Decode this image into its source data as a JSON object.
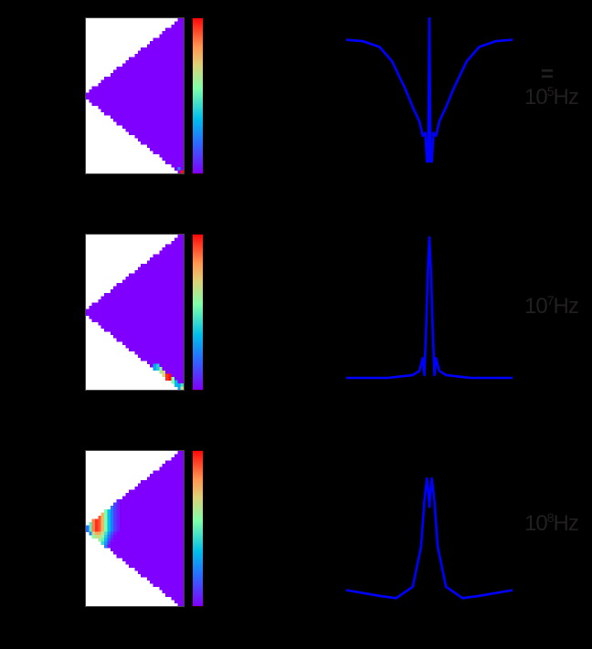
{
  "chart_data": [
    {
      "type": "heatmap",
      "title": "",
      "panel": 1,
      "frequency_label": {
        "base": "10",
        "exponent": "5",
        "unit": "Hz",
        "prefix": "="
      },
      "colormap": "rainbow",
      "colorbar_ticks": [],
      "description": "Triangular (wedge) region, apex at left-middle, fully uniform minimum value (violet) except a hot cell at bottom-right corner",
      "hotspots": [
        {
          "col": 31,
          "row": 47,
          "value": 1.0
        },
        {
          "col": 30,
          "row": 46,
          "value": 0.25
        }
      ]
    },
    {
      "type": "line",
      "panel": 1,
      "title": "",
      "xlabel": "",
      "ylabel": "",
      "color": "#0000ff",
      "shape": "broad dip with narrow central spike and side notches",
      "x": [
        -1.0,
        -0.8,
        -0.6,
        -0.45,
        -0.3,
        -0.2,
        -0.12,
        -0.08,
        -0.05,
        -0.03,
        -0.015,
        0.0,
        0.015,
        0.03,
        0.05,
        0.08,
        0.12,
        0.2,
        0.3,
        0.45,
        0.6,
        0.8,
        1.0
      ],
      "y": [
        0.85,
        0.84,
        0.8,
        0.7,
        0.52,
        0.38,
        0.28,
        0.18,
        0.2,
        0.0,
        0.0,
        1.0,
        0.0,
        0.0,
        0.2,
        0.18,
        0.28,
        0.38,
        0.52,
        0.7,
        0.8,
        0.84,
        0.85
      ]
    },
    {
      "type": "heatmap",
      "panel": 2,
      "frequency_label": {
        "base": "10",
        "exponent": "7",
        "unit": "Hz"
      },
      "colormap": "rainbow",
      "description": "Same wedge, uniform violet with a band of mixed colours along the lower-right diagonal edge",
      "hotspots": [
        {
          "col": 22,
          "row": 40,
          "value": 0.3
        },
        {
          "col": 23,
          "row": 41,
          "value": 0.4
        },
        {
          "col": 24,
          "row": 42,
          "value": 0.6
        },
        {
          "col": 25,
          "row": 43,
          "value": 0.7
        },
        {
          "col": 26,
          "row": 44,
          "value": 0.95
        },
        {
          "col": 27,
          "row": 45,
          "value": 1.0
        },
        {
          "col": 28,
          "row": 46,
          "value": 0.55
        },
        {
          "col": 29,
          "row": 47,
          "value": 0.35
        }
      ]
    },
    {
      "type": "line",
      "panel": 2,
      "color": "#0000ff",
      "shape": "narrow central peak with small side lobes on flat baseline",
      "x": [
        -1.0,
        -0.5,
        -0.2,
        -0.12,
        -0.08,
        -0.06,
        -0.04,
        -0.02,
        0.0,
        0.02,
        0.04,
        0.06,
        0.08,
        0.12,
        0.2,
        0.5,
        1.0
      ],
      "y": [
        0.0,
        0.0,
        0.02,
        0.05,
        0.14,
        0.02,
        0.35,
        0.75,
        1.0,
        0.75,
        0.35,
        0.02,
        0.14,
        0.05,
        0.02,
        0.0,
        0.0
      ]
    },
    {
      "type": "heatmap",
      "panel": 3,
      "frequency_label": {
        "base": "10",
        "exponent": "8",
        "unit": "Hz"
      },
      "colormap": "rainbow",
      "description": "Wedge with strong gradient near apex: red/orange near apex fading through green, cyan, blue to violet moving right",
      "gradient_columns": [
        {
          "col": 0,
          "value": 0.2
        },
        {
          "col": 1,
          "value": 0.5
        },
        {
          "col": 2,
          "value": 0.85
        },
        {
          "col": 3,
          "value": 0.95
        },
        {
          "col": 4,
          "value": 0.9
        },
        {
          "col": 5,
          "value": 0.75
        },
        {
          "col": 6,
          "value": 0.55
        },
        {
          "col": 7,
          "value": 0.35
        },
        {
          "col": 8,
          "value": 0.22
        },
        {
          "col": 9,
          "value": 0.12
        },
        {
          "col": 10,
          "value": 0.05
        },
        {
          "col": 11,
          "value": 0.0
        }
      ]
    },
    {
      "type": "line",
      "panel": 3,
      "color": "#0000ff",
      "shape": "double-humped central peak with slight negative dips on shoulders",
      "x": [
        -1.0,
        -0.6,
        -0.4,
        -0.2,
        -0.1,
        -0.06,
        -0.03,
        -0.015,
        0.0,
        0.015,
        0.03,
        0.06,
        0.1,
        0.2,
        0.4,
        0.6,
        1.0
      ],
      "y": [
        0.02,
        -0.03,
        -0.05,
        0.05,
        0.4,
        0.8,
        1.0,
        0.9,
        0.75,
        0.9,
        1.0,
        0.8,
        0.4,
        0.05,
        -0.05,
        -0.03,
        0.02
      ]
    }
  ],
  "labels": {
    "panel1": {
      "prefix": "=",
      "base": "10",
      "exp": "5",
      "unit": "Hz"
    },
    "panel2": {
      "base": "10",
      "exp": "7",
      "unit": "Hz"
    },
    "panel3": {
      "base": "10",
      "exp": "8",
      "unit": "Hz"
    }
  },
  "colors": {
    "curve": "#0000ff",
    "label_text": "#231f20",
    "background": "#000000",
    "min": "#8000ff",
    "max": "#ff0000"
  }
}
